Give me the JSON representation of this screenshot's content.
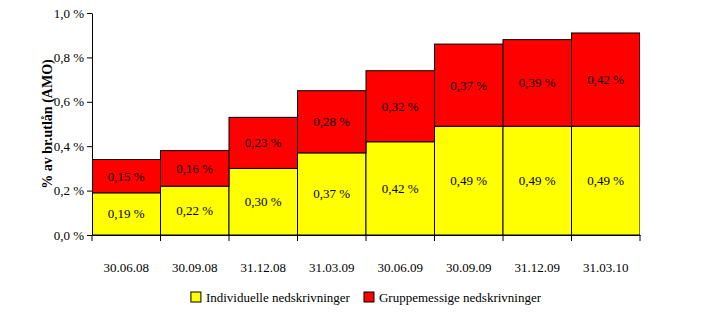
{
  "chart_data": {
    "type": "bar",
    "stacked": true,
    "data_labels": true,
    "grid": false,
    "legend": "bottom",
    "y_label": "% av br.utlån (AMO)",
    "categories": [
      "30.06.08",
      "30.09.08",
      "31.12.08",
      "31.03.09",
      "30.06.09",
      "30.09.09",
      "31.12.09",
      "31.03.10"
    ],
    "ylim": [
      0,
      1
    ],
    "yticks": [
      {
        "value": 0,
        "label": "0,0 %"
      },
      {
        "value": 0.2,
        "label": "0,2 %"
      },
      {
        "value": 0.4,
        "label": "0,4 %"
      },
      {
        "value": 0.6,
        "label": "0,6 %"
      },
      {
        "value": 0.8,
        "label": "0,8 %"
      },
      {
        "value": 1,
        "label": "1,0 %"
      }
    ],
    "series": [
      {
        "name": "Individuelle nedskrivninger",
        "color": "#ffff00",
        "values": [
          0.19,
          0.22,
          0.3,
          0.37,
          0.42,
          0.49,
          0.49,
          0.49
        ],
        "value_labels": [
          "0,19 %",
          "0,22 %",
          "0,30 %",
          "0,37 %",
          "0,42 %",
          "0,49 %",
          "0,49 %",
          "0,49 %"
        ]
      },
      {
        "name": "Gruppemessige nedskrivninger",
        "color": "#ff0000",
        "values": [
          0.15,
          0.16,
          0.23,
          0.28,
          0.32,
          0.37,
          0.39,
          0.42
        ],
        "value_labels": [
          "0,15 %",
          "0,16 %",
          "0,23 %",
          "0,28 %",
          "0,32 %",
          "0,37 %",
          "0,39 %",
          "0,42 %"
        ]
      }
    ]
  }
}
